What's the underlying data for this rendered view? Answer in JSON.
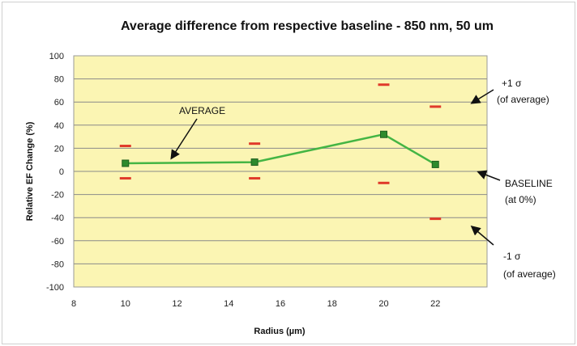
{
  "chart_data": {
    "type": "line",
    "title": "Average difference from respective baseline - 850 nm, 50 um",
    "xlabel": "Radius (µm)",
    "ylabel": "Relative EF Change (%)",
    "xlim": [
      8,
      24
    ],
    "ylim": [
      -100,
      100
    ],
    "x_ticks": [
      8,
      10,
      12,
      14,
      16,
      18,
      20,
      22
    ],
    "y_ticks": [
      -100,
      -80,
      -60,
      -40,
      -20,
      0,
      20,
      40,
      60,
      80,
      100
    ],
    "grid": "horizontal",
    "series": [
      {
        "name": "AVERAGE",
        "x": [
          10,
          15,
          20,
          22
        ],
        "y": [
          7,
          8,
          32,
          6
        ],
        "plus_1_sigma": [
          22,
          24,
          75,
          56
        ],
        "minus_1_sigma": [
          -6,
          -6,
          -10,
          -41
        ]
      }
    ],
    "annotations": {
      "average": "AVERAGE",
      "plus_sigma_line1": "+1 σ",
      "plus_sigma_line2": "(of average)",
      "baseline_line1": "BASELINE",
      "baseline_line2": "(at 0%)",
      "minus_sigma_line1": "-1 σ",
      "minus_sigma_line2": "(of average)"
    },
    "colors": {
      "plot_background": "#fbf5b3",
      "gridline": "#8a8a8a",
      "average_line": "#44b544",
      "marker_fill": "#2d8a2d",
      "sigma_marker": "#e03a2a"
    }
  }
}
